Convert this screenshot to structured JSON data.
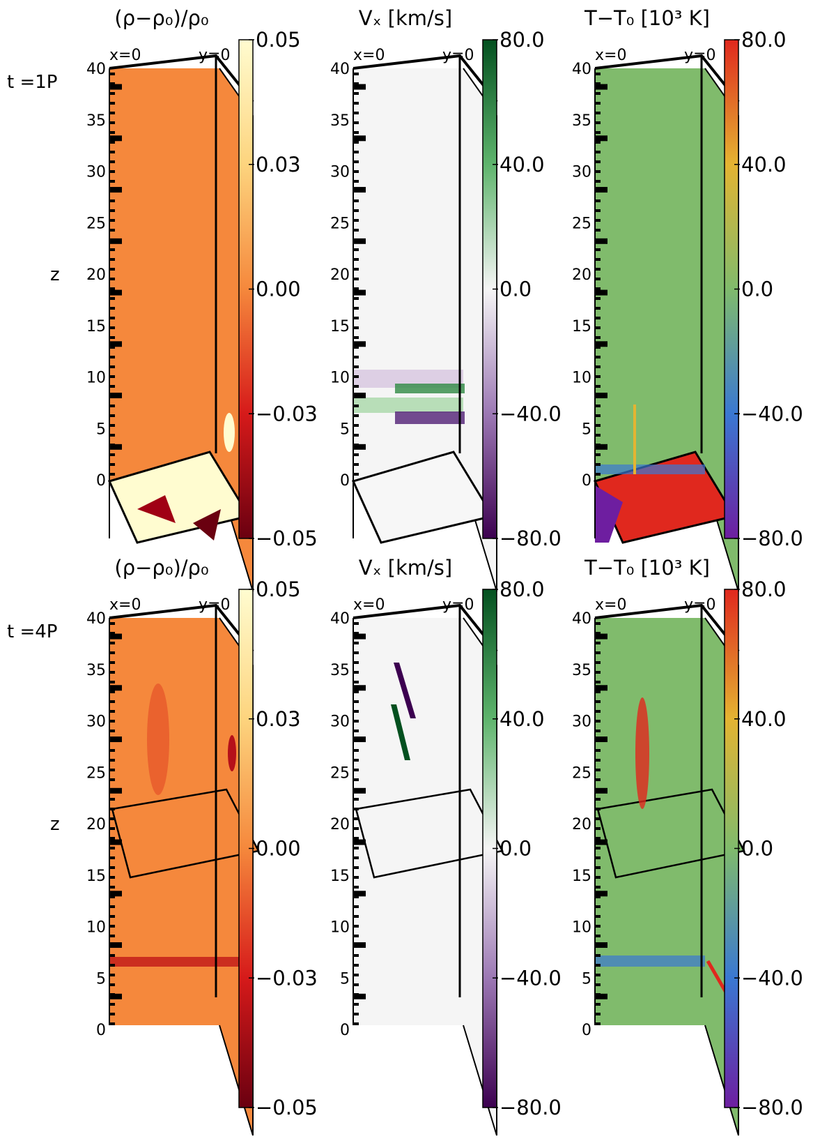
{
  "rows": [
    {
      "time_label": "t  =1P",
      "z_label": "z"
    },
    {
      "time_label": "t  =4P",
      "z_label": "z"
    }
  ],
  "panels": [
    {
      "title": "(ρ−ρ₀)/ρ₀",
      "x_label": "x=0",
      "y_label": "y=0",
      "colorbar": [
        "0.05",
        "0.03",
        "0.00",
        "−0.03",
        "−0.05"
      ],
      "palette": [
        "#fffcd0",
        "#fdd47e",
        "#f5883c",
        "#d61a1a",
        "#6a0010"
      ]
    },
    {
      "title": "Vₓ [km/s]",
      "x_label": "x=0",
      "y_label": "y=0",
      "colorbar": [
        "80.0",
        "40.0",
        "0.0",
        "−40.0",
        "−80.0"
      ],
      "palette": [
        "#03501f",
        "#5eb46c",
        "#f5f5f5",
        "#9c78b4",
        "#3c0050"
      ]
    },
    {
      "title": "T−T₀ [10³ K]",
      "x_label": "x=0",
      "y_label": "y=0",
      "colorbar": [
        "80.0",
        "40.0",
        "0.0",
        "−40.0",
        "−80.0"
      ],
      "palette": [
        "#e0281e",
        "#e4b432",
        "#80bb6c",
        "#3a78d2",
        "#6e1ea0"
      ]
    }
  ],
  "z_ticks": [
    "40",
    "35",
    "30",
    "25",
    "20",
    "15",
    "10",
    "5",
    "0"
  ]
}
